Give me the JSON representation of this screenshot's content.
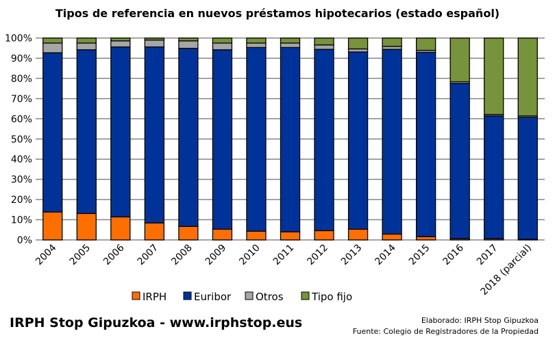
{
  "chart_data": {
    "type": "bar",
    "stacked": true,
    "title": "Tipos de referencia en nuevos préstamos hipotecarios (estado español)",
    "xlabel": "",
    "ylabel": "",
    "ylim": [
      0,
      100
    ],
    "yticks": [
      "0%",
      "10%",
      "20%",
      "30%",
      "40%",
      "50%",
      "60%",
      "70%",
      "80%",
      "90%",
      "100%"
    ],
    "grid": true,
    "legend": "bottom",
    "categories": [
      "2004",
      "2005",
      "2006",
      "2007",
      "2008",
      "2009",
      "2010",
      "2011",
      "2012",
      "2013",
      "2014",
      "2015",
      "2016",
      "2017",
      "2018 (parcial)"
    ],
    "series": [
      {
        "name": "IRPH",
        "color": "#ff6f00",
        "values": [
          13.8,
          13.1,
          11.4,
          8.4,
          6.7,
          5.3,
          4.3,
          4.0,
          4.6,
          5.3,
          2.9,
          1.6,
          0.6,
          0.6,
          0.3
        ]
      },
      {
        "name": "Euribor",
        "color": "#003399",
        "values": [
          78.9,
          81.1,
          84.2,
          87.2,
          88.2,
          88.9,
          91.0,
          91.3,
          89.8,
          87.8,
          91.5,
          91.3,
          76.9,
          60.8,
          60.4
        ]
      },
      {
        "name": "Otros",
        "color": "#a6a6a6",
        "values": [
          4.8,
          3.3,
          3.0,
          3.4,
          3.7,
          3.3,
          2.2,
          2.2,
          2.2,
          1.5,
          1.5,
          1.0,
          0.8,
          0.7,
          0.7
        ]
      },
      {
        "name": "Tipo fijo",
        "color": "#77933c",
        "values": [
          2.5,
          2.5,
          1.4,
          1.0,
          1.4,
          2.5,
          2.5,
          2.5,
          3.4,
          5.4,
          4.1,
          6.1,
          21.7,
          37.9,
          38.6
        ]
      }
    ]
  },
  "footer": {
    "brand": "IRPH Stop Gipuzkoa  -  www.irphstop.eus",
    "elaborado": "Elaborado: IRPH Stop Gipuzkoa",
    "fuente": "Fuente:  Colegio de Registradores de la Propiedad"
  }
}
